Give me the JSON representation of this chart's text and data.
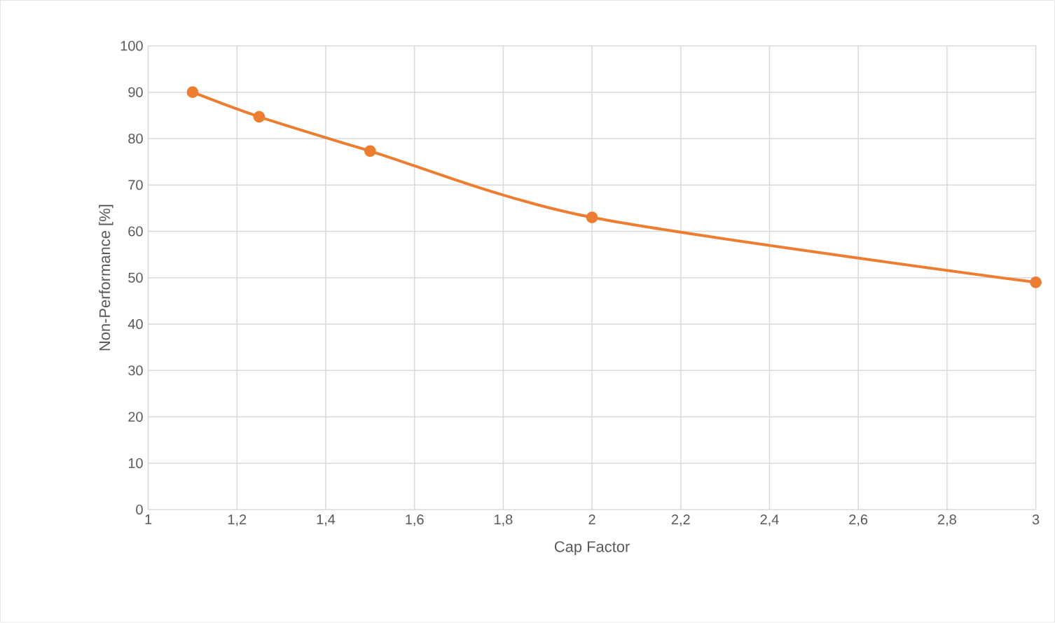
{
  "chart_data": {
    "type": "line",
    "xlabel": "Cap Factor",
    "ylabel": "Non-Performance [%]",
    "x": [
      1.1,
      1.25,
      1.5,
      2,
      3
    ],
    "series": [
      {
        "color": "#ed7d31",
        "values": [
          90,
          84.7,
          77.3,
          63,
          49
        ]
      }
    ],
    "xlim": [
      1,
      3
    ],
    "xticks": [
      1,
      {
        "value": 1.2,
        "label": "1,2"
      },
      {
        "value": 1.4,
        "label": "1,4"
      },
      {
        "value": 1.6,
        "label": "1,6"
      },
      {
        "value": 1.8,
        "label": "1,8"
      },
      2,
      {
        "value": 2.2,
        "label": "2,2"
      },
      {
        "value": 2.4,
        "label": "2,4"
      },
      {
        "value": 2.6,
        "label": "2,6"
      },
      {
        "value": 2.8,
        "label": "2,8"
      },
      3
    ],
    "ylim": [
      0,
      100
    ],
    "yticks": [
      0,
      10,
      20,
      30,
      40,
      50,
      60,
      70,
      80,
      90,
      100
    ],
    "grid": true,
    "marker": "circle",
    "line_style": "solid"
  }
}
